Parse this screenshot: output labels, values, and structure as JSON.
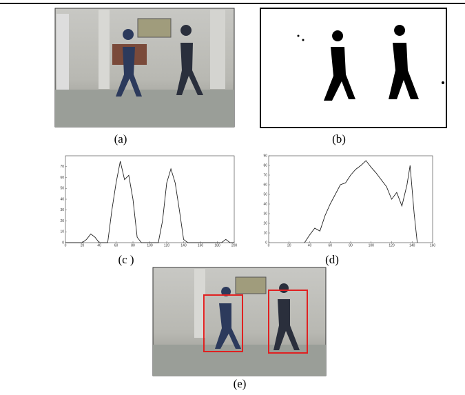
{
  "figure": {
    "panels": [
      "(a)",
      "(b)",
      "(c )",
      "(d)",
      "(e)"
    ]
  },
  "chart_data": [
    {
      "type": "line",
      "x": [
        0,
        5,
        10,
        15,
        20,
        25,
        30,
        35,
        40,
        45,
        50,
        55,
        60,
        65,
        70,
        75,
        80,
        85,
        90,
        95,
        100,
        105,
        110,
        115,
        120,
        125,
        130,
        135,
        140,
        145,
        150,
        155,
        160,
        165,
        170,
        175,
        180,
        185,
        190,
        195,
        200
      ],
      "series": [
        {
          "color": "#222",
          "values": [
            0,
            0,
            0,
            0,
            0,
            3,
            8,
            5,
            0,
            0,
            0,
            30,
            55,
            75,
            58,
            62,
            40,
            5,
            0,
            0,
            0,
            0,
            0,
            20,
            55,
            68,
            55,
            30,
            3,
            0,
            0,
            0,
            0,
            0,
            0,
            0,
            0,
            0,
            3,
            0,
            0
          ]
        }
      ],
      "xlim": [
        0,
        200
      ],
      "ylim": [
        0,
        80
      ],
      "xticks": [
        0,
        20,
        40,
        60,
        80,
        100,
        120,
        140,
        160,
        180,
        200
      ],
      "yticks": [
        0,
        10,
        20,
        30,
        40,
        50,
        60,
        70
      ]
    },
    {
      "type": "line",
      "x": [
        35,
        40,
        45,
        50,
        55,
        60,
        65,
        70,
        75,
        80,
        85,
        90,
        95,
        100,
        105,
        110,
        115,
        120,
        125,
        130,
        135,
        138,
        142,
        145
      ],
      "series": [
        {
          "color": "#222",
          "values": [
            0,
            8,
            15,
            12,
            28,
            40,
            50,
            60,
            62,
            70,
            76,
            80,
            85,
            78,
            72,
            65,
            58,
            45,
            52,
            38,
            60,
            80,
            30,
            0
          ]
        }
      ],
      "xlim": [
        0,
        160
      ],
      "ylim": [
        0,
        90
      ],
      "xticks": [
        0,
        20,
        40,
        60,
        80,
        100,
        120,
        140,
        160
      ],
      "yticks": [
        0,
        10,
        20,
        30,
        40,
        50,
        60,
        70,
        80,
        90
      ]
    }
  ]
}
